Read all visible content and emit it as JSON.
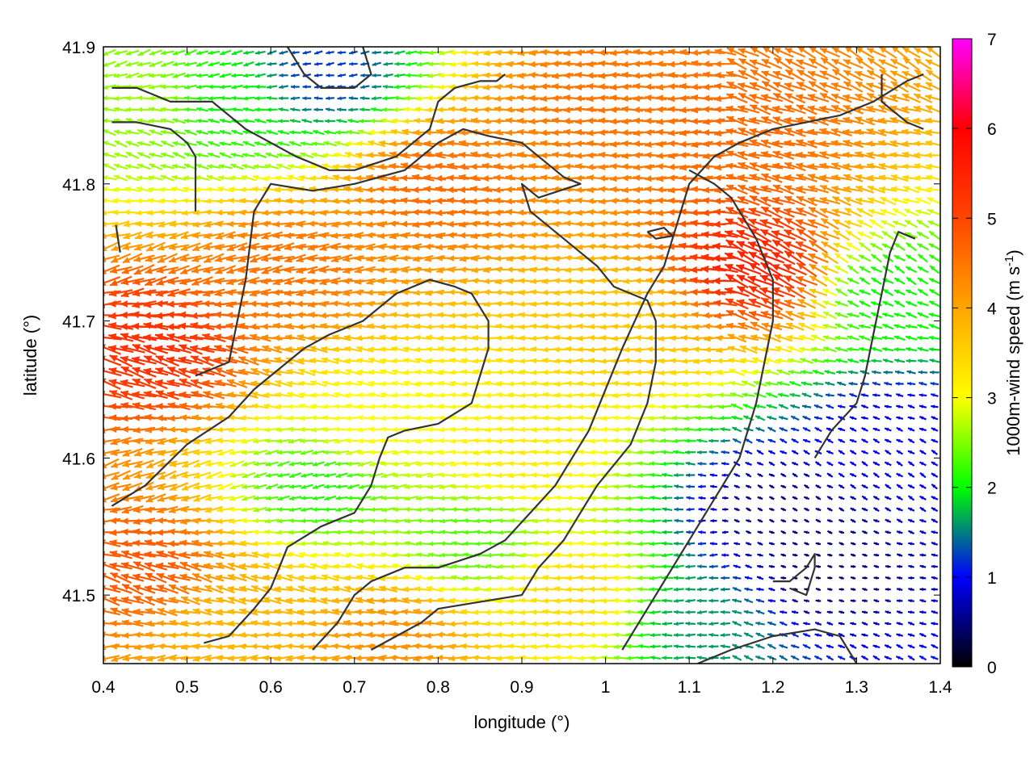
{
  "chart_data": {
    "type": "vector-field",
    "xlabel": "longitude (°)",
    "ylabel": "latitude (°)",
    "xlim": [
      0.4,
      1.4
    ],
    "ylim": [
      41.45,
      41.9
    ],
    "xticks": [
      "0.4",
      "0.5",
      "0.6",
      "0.7",
      "0.8",
      "0.9",
      "1",
      "1.1",
      "1.2",
      "1.3",
      "1.4"
    ],
    "yticks": [
      "41.5",
      "41.6",
      "41.7",
      "41.8",
      "41.9"
    ],
    "colorbar": {
      "label_main": "1000m-wind speed (m s",
      "label_sup": "-1",
      "label_close": ")",
      "range": [
        0,
        7
      ],
      "ticks": [
        "0",
        "1",
        "2",
        "3",
        "4",
        "5",
        "6",
        "7"
      ],
      "stops": [
        "#000000",
        "#0000ff",
        "#00ff00",
        "#ffff00",
        "#ffa500",
        "#ff4500",
        "#ff0000",
        "#ff00ff"
      ]
    },
    "grid": "off",
    "contour_color": "#333333",
    "wind_field": {
      "general_direction": "from east",
      "speed_regions": [
        {
          "lon": 0.46,
          "lat": 41.68,
          "speed": 5.3
        },
        {
          "lon": 0.45,
          "lat": 41.52,
          "speed": 4.8
        },
        {
          "lon": 0.62,
          "lat": 41.74,
          "speed": 4.5
        },
        {
          "lon": 0.8,
          "lat": 41.8,
          "speed": 4.6
        },
        {
          "lon": 1.0,
          "lat": 41.86,
          "speed": 4.5
        },
        {
          "lon": 1.18,
          "lat": 41.74,
          "speed": 5.5
        },
        {
          "lon": 1.16,
          "lat": 41.84,
          "speed": 4.6
        },
        {
          "lon": 0.72,
          "lat": 41.62,
          "speed": 3.0
        },
        {
          "lon": 0.66,
          "lat": 41.58,
          "speed": 2.1
        },
        {
          "lon": 0.84,
          "lat": 41.54,
          "speed": 2.3
        },
        {
          "lon": 0.9,
          "lat": 41.6,
          "speed": 3.2
        },
        {
          "lon": 1.02,
          "lat": 41.7,
          "speed": 3.6
        },
        {
          "lon": 0.66,
          "lat": 41.88,
          "speed": 1.2
        },
        {
          "lon": 0.55,
          "lat": 41.86,
          "speed": 2.0
        },
        {
          "lon": 0.45,
          "lat": 41.86,
          "speed": 2.6
        },
        {
          "lon": 1.2,
          "lat": 41.56,
          "speed": 0.5
        },
        {
          "lon": 1.26,
          "lat": 41.52,
          "speed": 0.4
        },
        {
          "lon": 1.34,
          "lat": 41.62,
          "speed": 0.9
        },
        {
          "lon": 1.34,
          "lat": 41.72,
          "speed": 2.0
        },
        {
          "lon": 1.12,
          "lat": 41.48,
          "speed": 1.6
        },
        {
          "lon": 0.96,
          "lat": 41.5,
          "speed": 3.4
        },
        {
          "lon": 0.75,
          "lat": 41.47,
          "speed": 4.2
        },
        {
          "lon": 0.55,
          "lat": 41.48,
          "speed": 3.8
        }
      ]
    },
    "contours": [
      [
        [
          0.41,
          41.87
        ],
        [
          0.44,
          41.87
        ],
        [
          0.48,
          41.86
        ],
        [
          0.53,
          41.86
        ],
        [
          0.55,
          41.85
        ],
        [
          0.57,
          41.84
        ],
        [
          0.6,
          41.83
        ],
        [
          0.63,
          41.82
        ],
        [
          0.67,
          41.81
        ],
        [
          0.7,
          41.81
        ],
        [
          0.75,
          41.82
        ],
        [
          0.77,
          41.83
        ],
        [
          0.79,
          41.84
        ],
        [
          0.8,
          41.86
        ],
        [
          0.82,
          41.87
        ],
        [
          0.85,
          41.875
        ],
        [
          0.87,
          41.875
        ],
        [
          0.88,
          41.88
        ]
      ],
      [
        [
          0.41,
          41.845
        ],
        [
          0.44,
          41.845
        ],
        [
          0.48,
          41.84
        ],
        [
          0.5,
          41.83
        ],
        [
          0.51,
          41.82
        ],
        [
          0.51,
          41.8
        ],
        [
          0.51,
          41.78
        ]
      ],
      [
        [
          0.415,
          41.77
        ],
        [
          0.42,
          41.75
        ]
      ],
      [
        [
          0.51,
          41.66
        ],
        [
          0.55,
          41.67
        ],
        [
          0.56,
          41.7
        ],
        [
          0.57,
          41.73
        ],
        [
          0.58,
          41.78
        ],
        [
          0.6,
          41.8
        ],
        [
          0.65,
          41.795
        ],
        [
          0.7,
          41.8
        ],
        [
          0.76,
          41.81
        ],
        [
          0.8,
          41.83
        ],
        [
          0.83,
          41.84
        ],
        [
          0.86,
          41.835
        ],
        [
          0.9,
          41.83
        ],
        [
          0.93,
          41.815
        ],
        [
          0.95,
          41.805
        ],
        [
          0.97,
          41.8
        ],
        [
          0.92,
          41.79
        ],
        [
          0.9,
          41.8
        ],
        [
          0.91,
          41.78
        ],
        [
          0.93,
          41.77
        ],
        [
          0.96,
          41.755
        ],
        [
          0.99,
          41.74
        ],
        [
          1.01,
          41.725
        ],
        [
          1.03,
          41.72
        ],
        [
          1.05,
          41.715
        ],
        [
          1.06,
          41.7
        ],
        [
          1.06,
          41.67
        ],
        [
          1.05,
          41.64
        ],
        [
          1.03,
          41.61
        ],
        [
          0.99,
          41.58
        ],
        [
          0.97,
          41.56
        ],
        [
          0.95,
          41.54
        ],
        [
          0.92,
          41.52
        ],
        [
          0.9,
          41.5
        ],
        [
          0.85,
          41.495
        ],
        [
          0.8,
          41.49
        ],
        [
          0.78,
          41.48
        ],
        [
          0.75,
          41.47
        ],
        [
          0.72,
          41.46
        ]
      ],
      [
        [
          0.52,
          41.465
        ],
        [
          0.55,
          41.47
        ],
        [
          0.58,
          41.49
        ],
        [
          0.6,
          41.505
        ],
        [
          0.61,
          41.52
        ],
        [
          0.62,
          41.535
        ],
        [
          0.66,
          41.55
        ],
        [
          0.7,
          41.56
        ],
        [
          0.72,
          41.58
        ],
        [
          0.73,
          41.6
        ],
        [
          0.74,
          41.615
        ],
        [
          0.76,
          41.62
        ],
        [
          0.8,
          41.625
        ],
        [
          0.84,
          41.64
        ],
        [
          0.85,
          41.66
        ],
        [
          0.86,
          41.68
        ],
        [
          0.86,
          41.7
        ],
        [
          0.84,
          41.72
        ],
        [
          0.82,
          41.725
        ],
        [
          0.79,
          41.73
        ],
        [
          0.75,
          41.72
        ],
        [
          0.71,
          41.7
        ],
        [
          0.67,
          41.69
        ],
        [
          0.64,
          41.68
        ],
        [
          0.62,
          41.67
        ],
        [
          0.58,
          41.65
        ],
        [
          0.55,
          41.63
        ],
        [
          0.5,
          41.61
        ],
        [
          0.45,
          41.58
        ],
        [
          0.41,
          41.565
        ]
      ],
      [
        [
          0.65,
          41.46
        ],
        [
          0.68,
          41.48
        ],
        [
          0.7,
          41.5
        ],
        [
          0.72,
          41.51
        ],
        [
          0.76,
          41.52
        ],
        [
          0.8,
          41.52
        ],
        [
          0.85,
          41.53
        ],
        [
          0.88,
          41.54
        ],
        [
          0.91,
          41.56
        ],
        [
          0.94,
          41.58
        ],
        [
          0.96,
          41.6
        ],
        [
          0.98,
          41.62
        ],
        [
          1.0,
          41.65
        ],
        [
          1.02,
          41.68
        ],
        [
          1.05,
          41.72
        ],
        [
          1.07,
          41.74
        ],
        [
          1.08,
          41.76
        ],
        [
          1.1,
          41.8
        ],
        [
          1.13,
          41.82
        ],
        [
          1.16,
          41.83
        ],
        [
          1.2,
          41.84
        ],
        [
          1.24,
          41.845
        ],
        [
          1.28,
          41.85
        ],
        [
          1.32,
          41.86
        ],
        [
          1.36,
          41.875
        ],
        [
          1.38,
          41.88
        ]
      ],
      [
        [
          1.02,
          41.46
        ],
        [
          1.04,
          41.48
        ],
        [
          1.06,
          41.5
        ],
        [
          1.08,
          41.52
        ],
        [
          1.1,
          41.54
        ],
        [
          1.12,
          41.56
        ],
        [
          1.14,
          41.58
        ],
        [
          1.16,
          41.6
        ],
        [
          1.17,
          41.62
        ],
        [
          1.18,
          41.64
        ],
        [
          1.19,
          41.67
        ],
        [
          1.2,
          41.7
        ],
        [
          1.2,
          41.73
        ],
        [
          1.18,
          41.76
        ],
        [
          1.16,
          41.78
        ],
        [
          1.15,
          41.79
        ],
        [
          1.13,
          41.8
        ],
        [
          1.1,
          41.81
        ]
      ],
      [
        [
          1.11,
          41.45
        ],
        [
          1.15,
          41.46
        ],
        [
          1.2,
          41.47
        ],
        [
          1.25,
          41.475
        ],
        [
          1.28,
          41.47
        ],
        [
          1.3,
          41.45
        ]
      ],
      [
        [
          1.2,
          41.51
        ],
        [
          1.22,
          41.51
        ],
        [
          1.24,
          41.52
        ],
        [
          1.25,
          41.53
        ],
        [
          1.25,
          41.52
        ],
        [
          1.24,
          41.5
        ],
        [
          1.22,
          41.505
        ]
      ],
      [
        [
          1.25,
          41.6
        ],
        [
          1.27,
          41.62
        ],
        [
          1.3,
          41.64
        ],
        [
          1.31,
          41.66
        ],
        [
          1.32,
          41.69
        ],
        [
          1.33,
          41.72
        ],
        [
          1.34,
          41.75
        ],
        [
          1.35,
          41.765
        ],
        [
          1.37,
          41.76
        ]
      ],
      [
        [
          1.33,
          41.88
        ],
        [
          1.33,
          41.86
        ],
        [
          1.36,
          41.845
        ],
        [
          1.38,
          41.84
        ]
      ],
      [
        [
          1.05,
          41.765
        ],
        [
          1.07,
          41.768
        ],
        [
          1.08,
          41.762
        ],
        [
          1.06,
          41.76
        ],
        [
          1.05,
          41.765
        ]
      ],
      [
        [
          0.62,
          41.9
        ],
        [
          0.64,
          41.88
        ],
        [
          0.66,
          41.87
        ],
        [
          0.7,
          41.87
        ],
        [
          0.72,
          41.88
        ],
        [
          0.71,
          41.9
        ]
      ]
    ]
  }
}
